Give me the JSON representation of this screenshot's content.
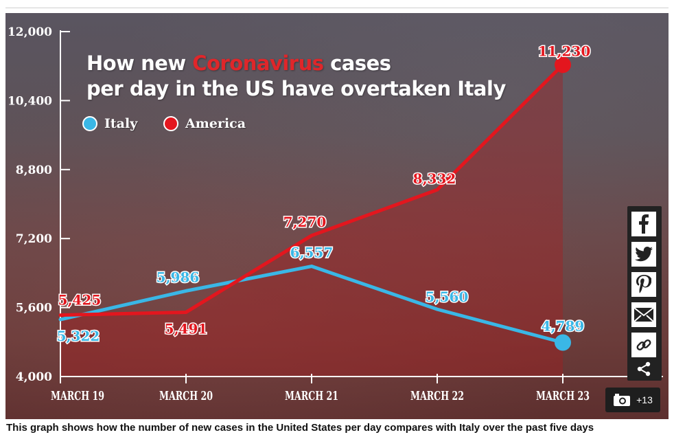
{
  "article": {
    "caption": "This graph shows how the number of new cases in the United States per day compares with Italy over the past five days"
  },
  "chart_data": {
    "type": "line",
    "title_parts": [
      "How new ",
      "Coronavirus",
      " cases"
    ],
    "title_line2": "per day in the US have overtaken Italy",
    "categories": [
      "MARCH 19",
      "MARCH 20",
      "MARCH 21",
      "MARCH 22",
      "MARCH 23"
    ],
    "yticks": [
      "12,000",
      "10,400",
      "8,800",
      "7,200",
      "5,600",
      "4,000"
    ],
    "ytick_values": [
      12000,
      10400,
      8800,
      7200,
      5600,
      4000
    ],
    "ylim": [
      4000,
      12000
    ],
    "xlabel": "",
    "ylabel": "",
    "legend_position": "top-left",
    "grid": false,
    "series": [
      {
        "name": "Italy",
        "color": "#3ab7e6",
        "values": [
          5322,
          5986,
          6557,
          5560,
          4789
        ],
        "labels": [
          "5,322",
          "5,986",
          "6,557",
          "5,560",
          "4,789"
        ]
      },
      {
        "name": "America",
        "color": "#e3161e",
        "values": [
          5425,
          5491,
          7270,
          8332,
          11230
        ],
        "labels": [
          "5,425",
          "5,491",
          "7,270",
          "8,332",
          "11,230"
        ]
      }
    ]
  },
  "share": {
    "items": [
      {
        "name": "facebook-icon",
        "glyph": "f"
      },
      {
        "name": "twitter-icon",
        "glyph": "t"
      },
      {
        "name": "pinterest-icon",
        "glyph": "P"
      },
      {
        "name": "email-icon",
        "glyph": "✉"
      },
      {
        "name": "link-icon",
        "glyph": "🔗"
      },
      {
        "name": "share-icon",
        "glyph": "share"
      }
    ]
  },
  "gallery": {
    "count_label": "+13",
    "icon": "camera-icon"
  }
}
